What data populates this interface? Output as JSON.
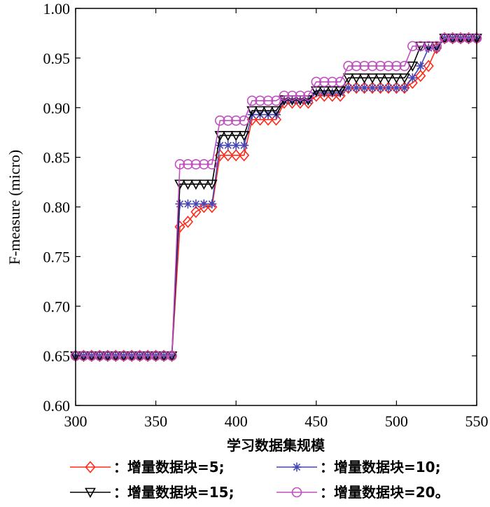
{
  "chart_data": {
    "type": "line",
    "title": "",
    "xlabel": "学习数据集规模",
    "ylabel": "F-measure (micro)",
    "xlim": [
      300,
      550
    ],
    "ylim": [
      0.6,
      1.0
    ],
    "xticks": [
      300,
      350,
      400,
      450,
      500,
      550
    ],
    "yticks": [
      "0.60",
      "0.65",
      "0.70",
      "0.75",
      "0.80",
      "0.85",
      "0.90",
      "0.95",
      "1.00"
    ],
    "grid": false,
    "legend_position": "bottom",
    "x": [
      300,
      305,
      310,
      315,
      320,
      325,
      330,
      335,
      340,
      345,
      350,
      355,
      360,
      365,
      370,
      375,
      380,
      385,
      390,
      395,
      400,
      405,
      410,
      415,
      420,
      425,
      430,
      435,
      440,
      445,
      450,
      455,
      460,
      465,
      470,
      475,
      480,
      485,
      490,
      495,
      500,
      505,
      510,
      515,
      520,
      525,
      530,
      535,
      540,
      545,
      550
    ],
    "series": [
      {
        "name": "增量数据块=5",
        "legend": "：增量数据块=5;",
        "color": "#ff2a1a",
        "marker": "diamond",
        "values": [
          0.65,
          0.65,
          0.65,
          0.65,
          0.65,
          0.65,
          0.65,
          0.65,
          0.65,
          0.65,
          0.65,
          0.65,
          0.65,
          0.78,
          0.785,
          0.795,
          0.8,
          0.8,
          0.852,
          0.852,
          0.852,
          0.852,
          0.888,
          0.888,
          0.888,
          0.888,
          0.905,
          0.905,
          0.905,
          0.905,
          0.912,
          0.912,
          0.912,
          0.912,
          0.92,
          0.92,
          0.92,
          0.92,
          0.92,
          0.92,
          0.92,
          0.92,
          0.925,
          0.932,
          0.942,
          0.96,
          0.97,
          0.97,
          0.97,
          0.97,
          0.97
        ]
      },
      {
        "name": "增量数据块=10",
        "legend": "：增量数据块=10;",
        "color": "#4646b4",
        "marker": "asterisk",
        "values": [
          0.65,
          0.65,
          0.65,
          0.65,
          0.65,
          0.65,
          0.65,
          0.65,
          0.65,
          0.65,
          0.65,
          0.65,
          0.65,
          0.803,
          0.803,
          0.803,
          0.803,
          0.803,
          0.862,
          0.862,
          0.862,
          0.862,
          0.893,
          0.893,
          0.893,
          0.893,
          0.907,
          0.907,
          0.907,
          0.907,
          0.915,
          0.915,
          0.915,
          0.915,
          0.92,
          0.92,
          0.92,
          0.92,
          0.92,
          0.92,
          0.92,
          0.92,
          0.93,
          0.942,
          0.96,
          0.96,
          0.97,
          0.97,
          0.97,
          0.97,
          0.97
        ]
      },
      {
        "name": "增量数据块=15",
        "legend": "：增量数据块=15;",
        "color": "#000000",
        "marker": "triangle-down",
        "values": [
          0.65,
          0.65,
          0.65,
          0.65,
          0.65,
          0.65,
          0.65,
          0.65,
          0.65,
          0.65,
          0.65,
          0.65,
          0.65,
          0.823,
          0.823,
          0.823,
          0.823,
          0.823,
          0.872,
          0.872,
          0.872,
          0.872,
          0.897,
          0.897,
          0.897,
          0.897,
          0.908,
          0.908,
          0.908,
          0.908,
          0.917,
          0.917,
          0.917,
          0.917,
          0.93,
          0.93,
          0.93,
          0.93,
          0.93,
          0.93,
          0.93,
          0.93,
          0.942,
          0.962,
          0.962,
          0.962,
          0.97,
          0.97,
          0.97,
          0.97,
          0.97
        ]
      },
      {
        "name": "增量数据块=20",
        "legend": "：增量数据块=20。",
        "color": "#c04fc0",
        "marker": "circle",
        "values": [
          0.65,
          0.65,
          0.65,
          0.65,
          0.65,
          0.65,
          0.65,
          0.65,
          0.65,
          0.65,
          0.65,
          0.65,
          0.65,
          0.843,
          0.843,
          0.843,
          0.843,
          0.843,
          0.887,
          0.887,
          0.887,
          0.887,
          0.907,
          0.907,
          0.907,
          0.907,
          0.912,
          0.912,
          0.912,
          0.912,
          0.926,
          0.926,
          0.926,
          0.926,
          0.942,
          0.942,
          0.942,
          0.942,
          0.942,
          0.942,
          0.942,
          0.942,
          0.962,
          0.962,
          0.962,
          0.962,
          0.97,
          0.97,
          0.97,
          0.97,
          0.97
        ]
      }
    ]
  }
}
